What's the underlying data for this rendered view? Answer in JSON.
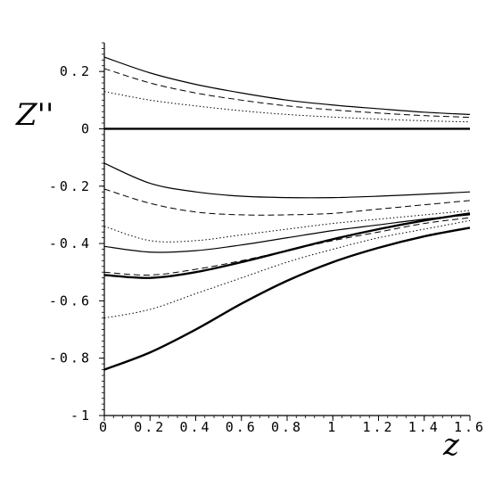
{
  "chart_data": {
    "type": "line",
    "xlabel": "z",
    "ylabel": "Z''",
    "xlim": [
      0,
      1.6
    ],
    "ylim": [
      -1,
      0.3
    ],
    "x_ticks": [
      0,
      0.2,
      0.4,
      0.6,
      0.8,
      1,
      1.2,
      1.4,
      1.6
    ],
    "x_tick_labels": [
      "0",
      "0.2",
      "0.4",
      "0.6",
      "0.8",
      "1",
      "1.2",
      "1.4",
      "1.6"
    ],
    "y_ticks": [
      0.2,
      0,
      -0.2,
      -0.4,
      -0.6,
      -0.8,
      -1
    ],
    "y_tick_labels": [
      "0.2",
      "0",
      "-0.2",
      "-0.4",
      "-0.6",
      "-0.8",
      "-1"
    ],
    "grid": false,
    "x": [
      0,
      0.2,
      0.4,
      0.6,
      0.8,
      1.0,
      1.2,
      1.4,
      1.6
    ],
    "series": [
      {
        "style": "solid",
        "width": 1.2,
        "values": [
          0.25,
          0.195,
          0.155,
          0.125,
          0.1,
          0.083,
          0.07,
          0.058,
          0.05
        ]
      },
      {
        "style": "dash",
        "width": 1.0,
        "values": [
          0.21,
          0.16,
          0.125,
          0.1,
          0.08,
          0.066,
          0.055,
          0.046,
          0.04
        ]
      },
      {
        "style": "dot",
        "width": 1.0,
        "values": [
          0.13,
          0.1,
          0.08,
          0.063,
          0.05,
          0.041,
          0.034,
          0.028,
          0.024
        ]
      },
      {
        "style": "solid",
        "width": 2.4,
        "values": [
          0,
          0,
          0,
          0,
          0,
          0,
          0,
          0,
          0
        ]
      },
      {
        "style": "solid",
        "width": 1.2,
        "values": [
          -0.12,
          -0.19,
          -0.22,
          -0.235,
          -0.24,
          -0.24,
          -0.235,
          -0.228,
          -0.22
        ]
      },
      {
        "style": "dash",
        "width": 1.0,
        "values": [
          -0.21,
          -0.26,
          -0.29,
          -0.3,
          -0.3,
          -0.295,
          -0.28,
          -0.265,
          -0.25
        ]
      },
      {
        "style": "dot",
        "width": 1.0,
        "values": [
          -0.34,
          -0.39,
          -0.39,
          -0.37,
          -0.35,
          -0.33,
          -0.315,
          -0.3,
          -0.285
        ]
      },
      {
        "style": "solid",
        "width": 1.2,
        "values": [
          -0.41,
          -0.43,
          -0.425,
          -0.405,
          -0.38,
          -0.355,
          -0.335,
          -0.315,
          -0.3
        ]
      },
      {
        "style": "solid",
        "width": 2.4,
        "values": [
          -0.51,
          -0.52,
          -0.5,
          -0.465,
          -0.425,
          -0.385,
          -0.35,
          -0.32,
          -0.295
        ]
      },
      {
        "style": "dash",
        "width": 1.0,
        "values": [
          -0.5,
          -0.51,
          -0.49,
          -0.46,
          -0.425,
          -0.39,
          -0.36,
          -0.33,
          -0.31
        ]
      },
      {
        "style": "dot",
        "width": 1.0,
        "values": [
          -0.66,
          -0.63,
          -0.575,
          -0.52,
          -0.465,
          -0.42,
          -0.38,
          -0.35,
          -0.32
        ]
      },
      {
        "style": "solid",
        "width": 2.4,
        "values": [
          -0.84,
          -0.78,
          -0.7,
          -0.61,
          -0.53,
          -0.465,
          -0.415,
          -0.375,
          -0.345
        ]
      }
    ]
  }
}
